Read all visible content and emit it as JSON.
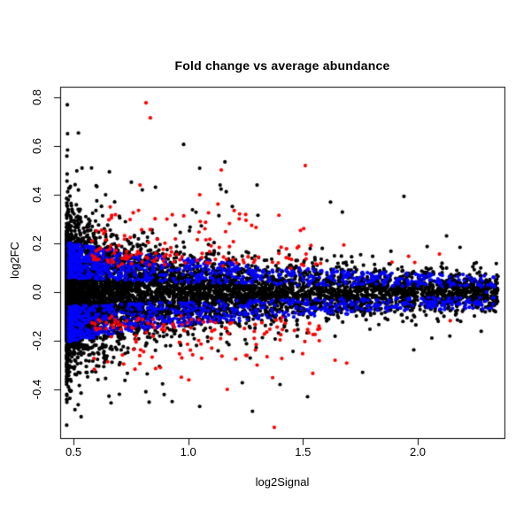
{
  "figure": {
    "background": "#ffffff"
  },
  "chart_data": {
    "type": "scatter",
    "title": "Fold change vs average abundance",
    "xlabel": "log2Signal",
    "ylabel": "log2FC",
    "xlim": [
      0.442,
      2.378
    ],
    "ylim": [
      -0.6,
      0.844
    ],
    "x_ticks": [
      0.5,
      1.0,
      1.5,
      2.0
    ],
    "x_tick_labels": [
      "0.5",
      "1.0",
      "1.5",
      "2.0"
    ],
    "y_ticks": [
      -0.4,
      -0.2,
      0.0,
      0.2,
      0.4,
      0.6,
      0.8
    ],
    "y_tick_labels": [
      "-0.4",
      "-0.2",
      "0.0",
      "0.2",
      "0.4",
      "0.6",
      "0.8"
    ],
    "grid": false,
    "legend_position": "none",
    "frame_color": "#000000",
    "background": "#ffffff",
    "point_radius": 2.1,
    "seed": 42,
    "series": [
      {
        "name": "black",
        "color": "#000000",
        "count": 7000,
        "model": {
          "type": "core",
          "x_min": 0.47,
          "x_span": 1.88,
          "x_skew": 2.6,
          "x_max": 2.36,
          "s_base": 0.032,
          "s_amp": 0.105,
          "s_decay": 1.6,
          "mix": [
            [
              0.928,
              1.0
            ],
            [
              0.06,
              2.0
            ],
            [
              0.012,
              3.2
            ]
          ],
          "y_clip": [
            -0.575,
            0.82
          ]
        },
        "outliers": [
          [
            0.98,
            0.607
          ],
          [
            1.16,
            0.535
          ],
          [
            1.05,
            0.509
          ],
          [
            1.3,
            0.44
          ],
          [
            0.8,
            0.42
          ],
          [
            0.64,
            0.4
          ],
          [
            1.62,
            0.37
          ],
          [
            1.28,
            -0.49
          ],
          [
            1.05,
            -0.47
          ],
          [
            0.93,
            -0.45
          ],
          [
            1.52,
            -0.43
          ],
          [
            0.7,
            -0.42
          ],
          [
            1.4,
            -0.38
          ],
          [
            1.76,
            -0.33
          ]
        ]
      },
      {
        "name": "blue",
        "color": "#0000ff",
        "count": 1500,
        "model": {
          "type": "band",
          "x_min": 0.48,
          "x_span": 1.86,
          "x_skew": 2.2,
          "x_max": 2.34,
          "s_base": 0.05,
          "s_amp": 0.155,
          "s_decay": 1.1,
          "inner": 0.28,
          "y_clip": [
            -0.575,
            0.82
          ]
        },
        "outliers": [
          [
            2.3,
            0.0
          ],
          [
            2.22,
            -0.04
          ],
          [
            2.18,
            0.05
          ],
          [
            2.1,
            -0.07
          ]
        ]
      },
      {
        "name": "red",
        "color": "#ff0000",
        "count": 280,
        "model": {
          "type": "outer",
          "x_min": 0.58,
          "x_span": 1.0,
          "x_skew": 1.4,
          "x_jump_p": 0.12,
          "x_jump": 0.35,
          "x_max": 2.15,
          "y_base": 0.125,
          "y_amp": 0.22,
          "y_pow": 2.4,
          "pos_frac": 0.52,
          "y_jitter": 0.012,
          "y_clip": [
            -0.575,
            0.82
          ]
        },
        "outliers": [
          [
            0.816,
            0.778
          ],
          [
            0.835,
            0.716
          ],
          [
            1.51,
            0.52
          ],
          [
            1.144,
            0.502
          ],
          [
            0.79,
            0.44
          ],
          [
            1.05,
            0.4
          ],
          [
            0.66,
            0.35
          ],
          [
            1.375,
            -0.556
          ],
          [
            1.17,
            -0.4
          ],
          [
            0.97,
            -0.35
          ],
          [
            1.3,
            -0.3
          ],
          [
            1.64,
            -0.28
          ]
        ]
      }
    ]
  }
}
